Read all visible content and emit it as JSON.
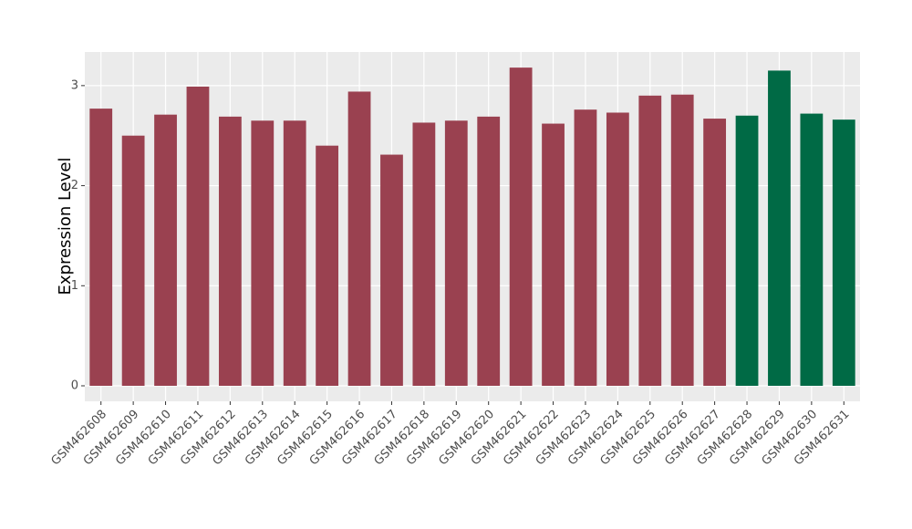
{
  "chart_data": {
    "type": "bar",
    "y_label": "Expression Level",
    "categories": [
      "GSM462608",
      "GSM462609",
      "GSM462610",
      "GSM462611",
      "GSM462612",
      "GSM462613",
      "GSM462614",
      "GSM462615",
      "GSM462616",
      "GSM462617",
      "GSM462618",
      "GSM462619",
      "GSM462620",
      "GSM462621",
      "GSM462622",
      "GSM462623",
      "GSM462624",
      "GSM462625",
      "GSM462626",
      "GSM462627",
      "GSM462628",
      "GSM462629",
      "GSM462630",
      "GSM462631"
    ],
    "values": [
      2.77,
      2.5,
      2.71,
      2.99,
      2.69,
      2.65,
      2.65,
      2.4,
      2.94,
      2.31,
      2.63,
      2.65,
      2.69,
      3.18,
      2.62,
      2.76,
      2.73,
      2.9,
      2.91,
      2.67,
      2.7,
      3.15,
      2.72,
      2.66
    ],
    "colors": [
      "#9a4150",
      "#9a4150",
      "#9a4150",
      "#9a4150",
      "#9a4150",
      "#9a4150",
      "#9a4150",
      "#9a4150",
      "#9a4150",
      "#9a4150",
      "#9a4150",
      "#9a4150",
      "#9a4150",
      "#9a4150",
      "#9a4150",
      "#9a4150",
      "#9a4150",
      "#9a4150",
      "#9a4150",
      "#9a4150",
      "#006a45",
      "#006a45",
      "#006a45",
      "#006a45"
    ],
    "ylim": [
      -0.155,
      3.336
    ],
    "yticks": [
      0,
      1,
      2,
      3
    ],
    "grid": true
  }
}
